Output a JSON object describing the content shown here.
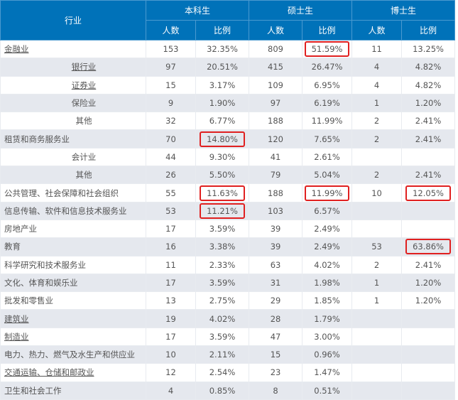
{
  "header": {
    "industry": "行业",
    "groups": [
      "本科生",
      "硕士生",
      "博士生"
    ],
    "sub_count": "人数",
    "sub_ratio": "比例"
  },
  "rows": [
    {
      "name": "金融业",
      "sub": false,
      "underline": true,
      "b_n": "153",
      "b_p": "32.35%",
      "m_n": "809",
      "m_p": "51.59%",
      "d_n": "11",
      "d_p": "13.25%",
      "hl": [
        "m_p"
      ]
    },
    {
      "name": "银行业",
      "sub": true,
      "underline": true,
      "b_n": "97",
      "b_p": "20.51%",
      "m_n": "415",
      "m_p": "26.47%",
      "d_n": "4",
      "d_p": "4.82%",
      "hl": []
    },
    {
      "name": "证券业",
      "sub": true,
      "underline": true,
      "b_n": "15",
      "b_p": "3.17%",
      "m_n": "109",
      "m_p": "6.95%",
      "d_n": "4",
      "d_p": "4.82%",
      "hl": []
    },
    {
      "name": "保险业",
      "sub": true,
      "underline": false,
      "b_n": "9",
      "b_p": "1.90%",
      "m_n": "97",
      "m_p": "6.19%",
      "d_n": "1",
      "d_p": "1.20%",
      "hl": []
    },
    {
      "name": "其他",
      "sub": true,
      "underline": false,
      "b_n": "32",
      "b_p": "6.77%",
      "m_n": "188",
      "m_p": "11.99%",
      "d_n": "2",
      "d_p": "2.41%",
      "hl": []
    },
    {
      "name": "租赁和商务服务业",
      "sub": false,
      "underline": false,
      "b_n": "70",
      "b_p": "14.80%",
      "m_n": "120",
      "m_p": "7.65%",
      "d_n": "2",
      "d_p": "2.41%",
      "hl": [
        "b_p"
      ]
    },
    {
      "name": "会计业",
      "sub": true,
      "underline": false,
      "b_n": "44",
      "b_p": "9.30%",
      "m_n": "41",
      "m_p": "2.61%",
      "d_n": "",
      "d_p": "",
      "hl": []
    },
    {
      "name": "其他",
      "sub": true,
      "underline": false,
      "b_n": "26",
      "b_p": "5.50%",
      "m_n": "79",
      "m_p": "5.04%",
      "d_n": "2",
      "d_p": "2.41%",
      "hl": []
    },
    {
      "name": "公共管理、社会保障和社会组织",
      "sub": false,
      "underline": false,
      "b_n": "55",
      "b_p": "11.63%",
      "m_n": "188",
      "m_p": "11.99%",
      "d_n": "10",
      "d_p": "12.05%",
      "hl": [
        "b_p",
        "m_p",
        "d_p"
      ]
    },
    {
      "name": "信息传输、软件和信息技术服务业",
      "sub": false,
      "underline": false,
      "b_n": "53",
      "b_p": "11.21%",
      "m_n": "103",
      "m_p": "6.57%",
      "d_n": "",
      "d_p": "",
      "hl": [
        "b_p"
      ]
    },
    {
      "name": "房地产业",
      "sub": false,
      "underline": false,
      "b_n": "17",
      "b_p": "3.59%",
      "m_n": "39",
      "m_p": "2.49%",
      "d_n": "",
      "d_p": "",
      "hl": []
    },
    {
      "name": "教育",
      "sub": false,
      "underline": false,
      "b_n": "16",
      "b_p": "3.38%",
      "m_n": "39",
      "m_p": "2.49%",
      "d_n": "53",
      "d_p": "63.86%",
      "hl": [
        "d_p"
      ]
    },
    {
      "name": "科学研究和技术服务业",
      "sub": false,
      "underline": false,
      "b_n": "11",
      "b_p": "2.33%",
      "m_n": "63",
      "m_p": "4.02%",
      "d_n": "2",
      "d_p": "2.41%",
      "hl": []
    },
    {
      "name": "文化、体育和娱乐业",
      "sub": false,
      "underline": false,
      "b_n": "17",
      "b_p": "3.59%",
      "m_n": "31",
      "m_p": "1.98%",
      "d_n": "1",
      "d_p": "1.20%",
      "hl": []
    },
    {
      "name": "批发和零售业",
      "sub": false,
      "underline": false,
      "b_n": "13",
      "b_p": "2.75%",
      "m_n": "29",
      "m_p": "1.85%",
      "d_n": "1",
      "d_p": "1.20%",
      "hl": []
    },
    {
      "name": "建筑业",
      "sub": false,
      "underline": true,
      "b_n": "19",
      "b_p": "4.02%",
      "m_n": "28",
      "m_p": "1.79%",
      "d_n": "",
      "d_p": "",
      "hl": []
    },
    {
      "name": "制造业",
      "sub": false,
      "underline": true,
      "b_n": "17",
      "b_p": "3.59%",
      "m_n": "47",
      "m_p": "3.00%",
      "d_n": "",
      "d_p": "",
      "hl": []
    },
    {
      "name": "电力、热力、燃气及水生产和供应业",
      "sub": false,
      "underline": false,
      "b_n": "10",
      "b_p": "2.11%",
      "m_n": "15",
      "m_p": "0.96%",
      "d_n": "",
      "d_p": "",
      "hl": []
    },
    {
      "name": "交通运输、仓储和邮政业",
      "sub": false,
      "underline": true,
      "b_n": "12",
      "b_p": "2.54%",
      "m_n": "23",
      "m_p": "1.47%",
      "d_n": "",
      "d_p": "",
      "hl": []
    },
    {
      "name": "卫生和社会工作",
      "sub": false,
      "underline": false,
      "b_n": "4",
      "b_p": "0.85%",
      "m_n": "8",
      "m_p": "0.51%",
      "d_n": "",
      "d_p": "",
      "hl": []
    }
  ],
  "colors": {
    "header_bg": "#0072b9",
    "row_alt_bg": "#e5e8ee",
    "highlight_border": "#e02020",
    "text": "#555555"
  }
}
